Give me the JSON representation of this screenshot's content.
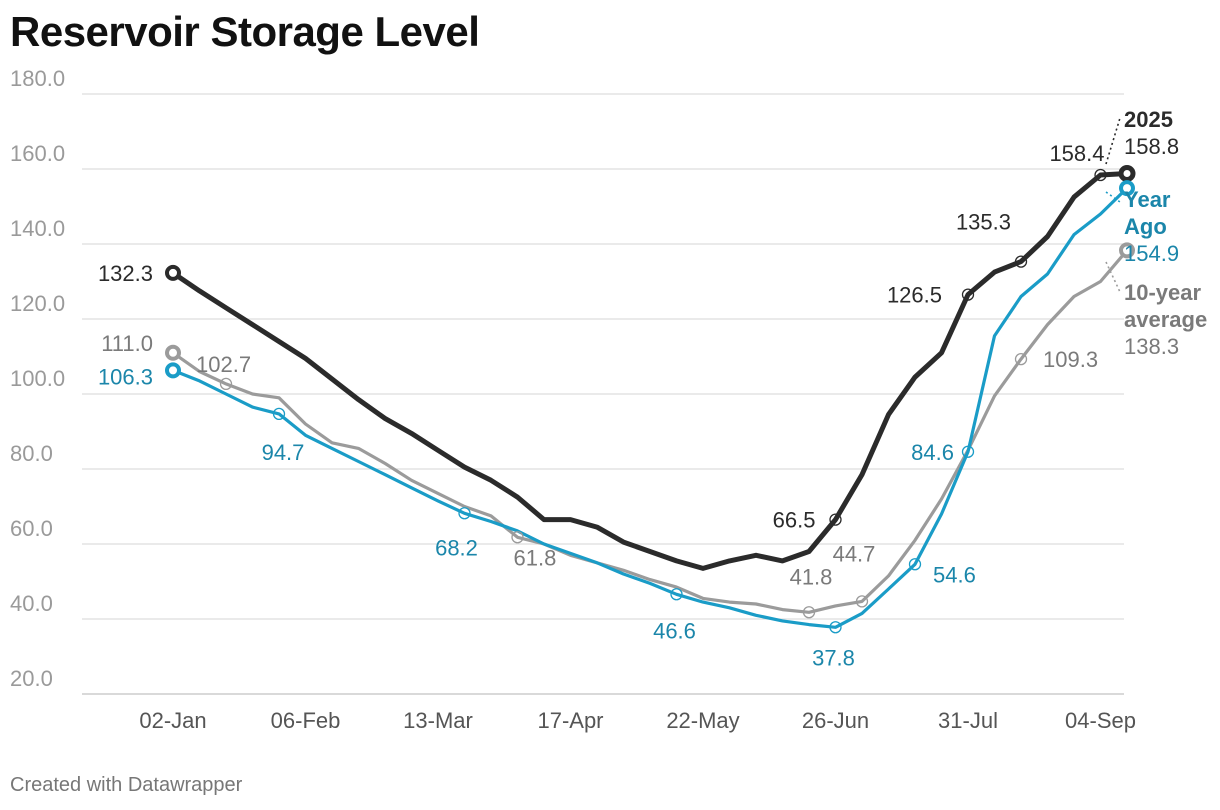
{
  "title": "Reservoir Storage Level",
  "footer": "Created with Datawrapper",
  "colors": {
    "s2025": "#2b2b2b",
    "yearAgo": "#1a9cc7",
    "yearAgoText": "#1b86aa",
    "avg": "#9b9b9b",
    "avgText": "#7a7a7a",
    "grid": "#dddddd"
  },
  "chart_data": {
    "type": "line",
    "title": "Reservoir Storage Level",
    "xlabel": "",
    "ylabel": "",
    "ylim": [
      20,
      180
    ],
    "yticks": [
      20,
      40,
      60,
      80,
      100,
      120,
      140,
      160,
      180
    ],
    "ytick_labels": [
      "20.0",
      "40.0",
      "60.0",
      "80.0",
      "100.0",
      "120.0",
      "140.0",
      "160.0",
      "180.0"
    ],
    "xlim": [
      -1.5,
      35
    ],
    "xticks": [
      0,
      5,
      10,
      15,
      20,
      25,
      30,
      35
    ],
    "xtick_labels": [
      "02-Jan",
      "06-Feb",
      "13-Mar",
      "17-Apr",
      "22-May",
      "26-Jun",
      "31-Jul",
      "04-Sep"
    ],
    "grid": true,
    "legend": "direct labels at line ends (right)",
    "series": [
      {
        "name": "2025",
        "end_label": [
          "2025"
        ],
        "end_value": "158.8",
        "values": [
          132.3,
          127.5,
          123.0,
          118.5,
          114.0,
          109.5,
          104.0,
          98.5,
          93.5,
          89.5,
          85.0,
          80.5,
          77.0,
          72.5,
          66.5,
          66.5,
          64.5,
          60.5,
          58.0,
          55.5,
          53.5,
          55.5,
          57.0,
          55.5,
          58.0,
          66.5,
          78.5,
          94.5,
          104.5,
          111.0,
          126.5,
          132.5,
          135.3,
          142.0,
          152.5,
          158.4,
          158.8
        ],
        "annotations": [
          {
            "i": 0,
            "text": "132.3"
          },
          {
            "i": 25,
            "text": "66.5"
          },
          {
            "i": 30,
            "text": "126.5"
          },
          {
            "i": 32,
            "text": "135.3"
          },
          {
            "i": 35,
            "text": "158.4"
          }
        ]
      },
      {
        "name": "Year Ago",
        "end_label": [
          "Year",
          "Ago"
        ],
        "end_value": "154.9",
        "values": [
          106.3,
          103.5,
          100.0,
          96.5,
          94.7,
          89.0,
          85.5,
          82.0,
          78.5,
          75.0,
          71.5,
          68.2,
          66.0,
          63.5,
          60.0,
          57.5,
          55.0,
          52.0,
          49.5,
          46.6,
          44.5,
          43.0,
          41.0,
          39.5,
          38.5,
          37.8,
          41.5,
          48.0,
          54.6,
          68.0,
          84.6,
          115.5,
          126.0,
          132.0,
          142.5,
          148.0,
          154.9
        ],
        "annotations": [
          {
            "i": 0,
            "text": "106.3"
          },
          {
            "i": 4,
            "text": "94.7"
          },
          {
            "i": 11,
            "text": "68.2"
          },
          {
            "i": 19,
            "text": "46.6"
          },
          {
            "i": 25,
            "text": "37.8"
          },
          {
            "i": 28,
            "text": "54.6"
          },
          {
            "i": 30,
            "text": "84.6"
          }
        ]
      },
      {
        "name": "10-year average",
        "end_label": [
          "10-year",
          "average"
        ],
        "end_value": "138.3",
        "values": [
          111.0,
          106.0,
          102.7,
          100.0,
          99.0,
          92.0,
          87.0,
          85.5,
          81.5,
          77.0,
          73.5,
          70.0,
          67.5,
          61.8,
          60.0,
          57.0,
          55.0,
          53.0,
          50.5,
          48.5,
          45.5,
          44.5,
          44.0,
          42.5,
          41.8,
          43.5,
          44.7,
          51.5,
          61.0,
          72.0,
          85.0,
          99.5,
          109.3,
          118.5,
          126.0,
          130.0,
          138.3
        ],
        "annotations": [
          {
            "i": 0,
            "text": "111.0"
          },
          {
            "i": 2,
            "text": "102.7"
          },
          {
            "i": 13,
            "text": "61.8"
          },
          {
            "i": 24,
            "text": "41.8"
          },
          {
            "i": 26,
            "text": "44.7"
          },
          {
            "i": 32,
            "text": "109.3"
          }
        ]
      }
    ]
  }
}
